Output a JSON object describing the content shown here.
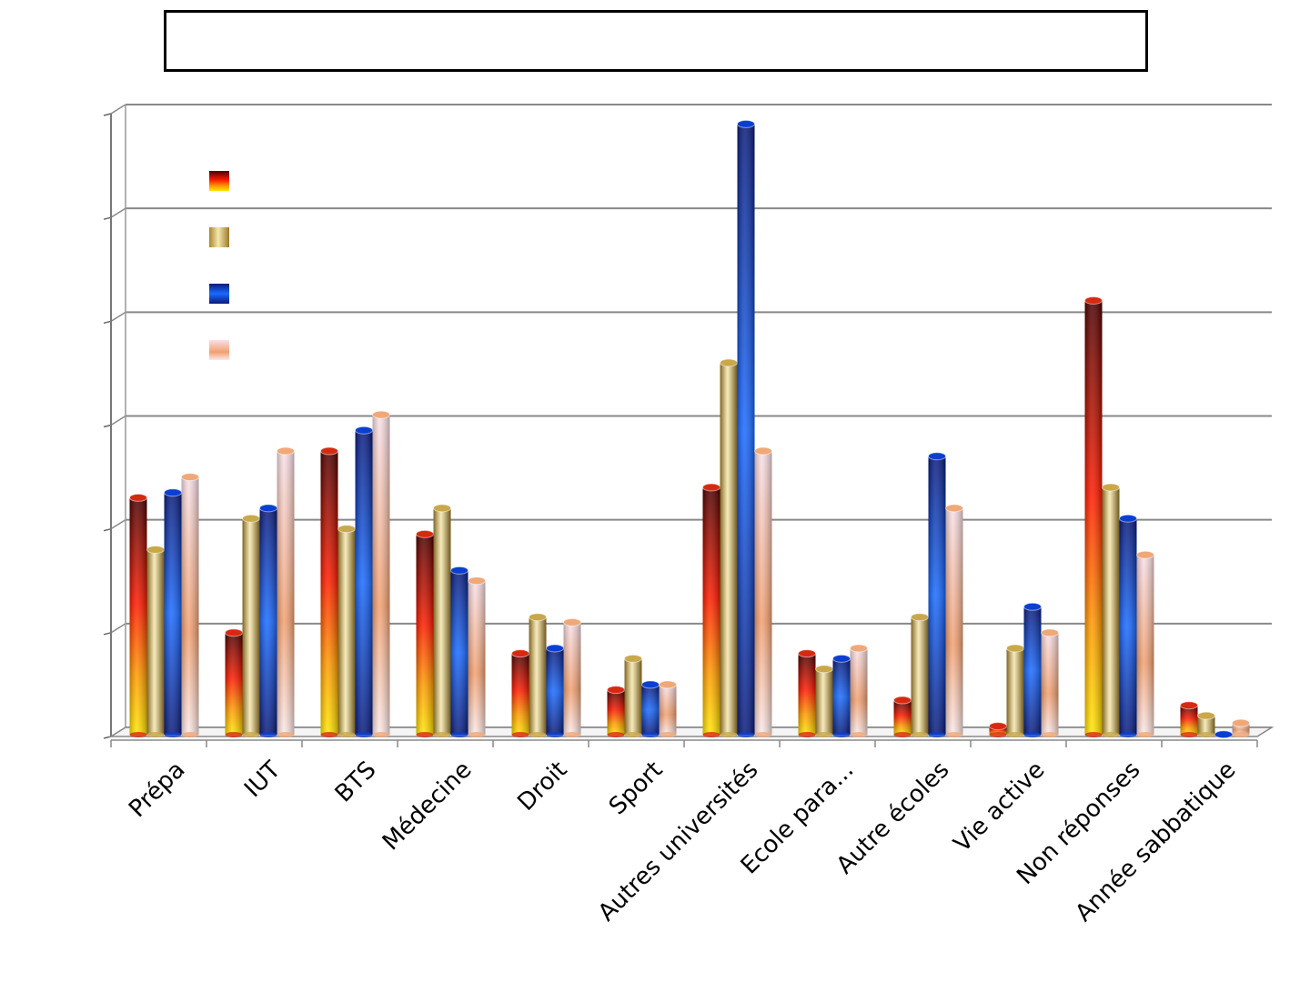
{
  "title": "",
  "chart_data": {
    "type": "bar",
    "title": "",
    "xlabel": "",
    "ylabel": "",
    "ylim": [
      0,
      60
    ],
    "grid": true,
    "legend_position": "top-left",
    "categories": [
      "Prépa",
      "IUT",
      "BTS",
      "Médecine",
      "Droit",
      "Sport",
      "Autres universités",
      "Ecole para...",
      "Autre écoles",
      "Vie active",
      "Non réponses",
      "Année sabbatique"
    ],
    "series": [
      {
        "values": [
          23,
          10,
          27.5,
          19.5,
          8,
          4.5,
          24,
          8,
          3.5,
          1,
          42,
          3
        ],
        "color": "#d62a10"
      },
      {
        "values": [
          18,
          21,
          20,
          22,
          11.5,
          7.5,
          36,
          6.5,
          11.5,
          8.5,
          24,
          2
        ],
        "color": "#c9a84a"
      },
      {
        "values": [
          23.5,
          22,
          29.5,
          16,
          8.5,
          5,
          59,
          7.5,
          27,
          12.5,
          21,
          0.2
        ],
        "color": "#0a3fd0"
      },
      {
        "values": [
          25,
          27.5,
          31,
          15,
          11,
          5,
          27.5,
          8.5,
          22,
          10,
          17.5,
          1.3
        ],
        "color": "#f0a878"
      }
    ]
  }
}
